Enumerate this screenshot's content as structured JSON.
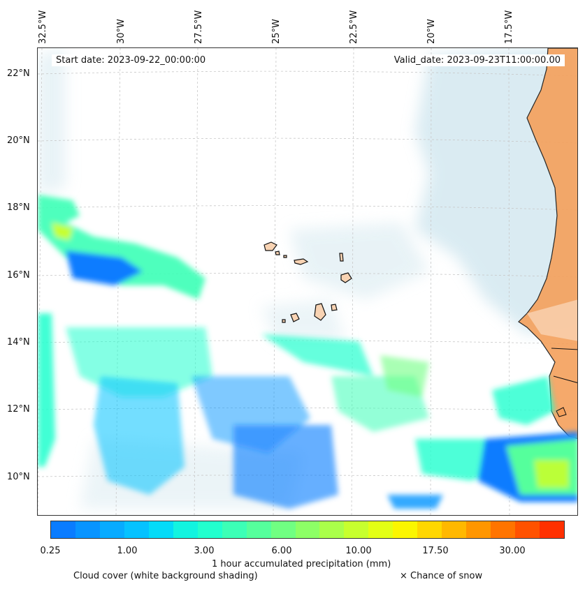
{
  "map": {
    "start_date": "Start date: 2023-09-22_00:00:00",
    "valid_date": "Valid_date: 2023-09-23T11:00:00.00",
    "lon_labels": [
      "32.5°W",
      "30°W",
      "27.5°W",
      "25°W",
      "22.5°W",
      "20°W",
      "17.5°W"
    ],
    "lat_labels": [
      "22°N",
      "20°N",
      "18°N",
      "16°N",
      "14°N",
      "12°N",
      "10°N"
    ]
  },
  "colorbar": {
    "title": "1 hour accumulated precipitation (mm)",
    "tick_labels": [
      "0.25",
      "1.00",
      "3.00",
      "6.00",
      "10.00",
      "17.50",
      "30.00"
    ],
    "colors": [
      "#0a7cff",
      "#0894ff",
      "#07abff",
      "#05c2ff",
      "#04dbf8",
      "#12f4e0",
      "#22ffce",
      "#3cffb6",
      "#55ff9c",
      "#70ff82",
      "#8dff66",
      "#aaff4a",
      "#c7ff2e",
      "#e3ff14",
      "#fbf600",
      "#ffd700",
      "#ffb800",
      "#ff9600",
      "#ff7400",
      "#ff5200",
      "#ff3000"
    ]
  },
  "footer": {
    "cloud_note": "Cloud cover (white background shading)",
    "snow_note": "× Chance of snow"
  },
  "colors": {
    "land_africa": "#f5a05b",
    "land_islands": "#f8d3b3",
    "cloud_shade": "#bcdce8",
    "precip_low": "#0a7cff",
    "precip_mid": "#3cffb6",
    "precip_high": "#ffd700"
  }
}
